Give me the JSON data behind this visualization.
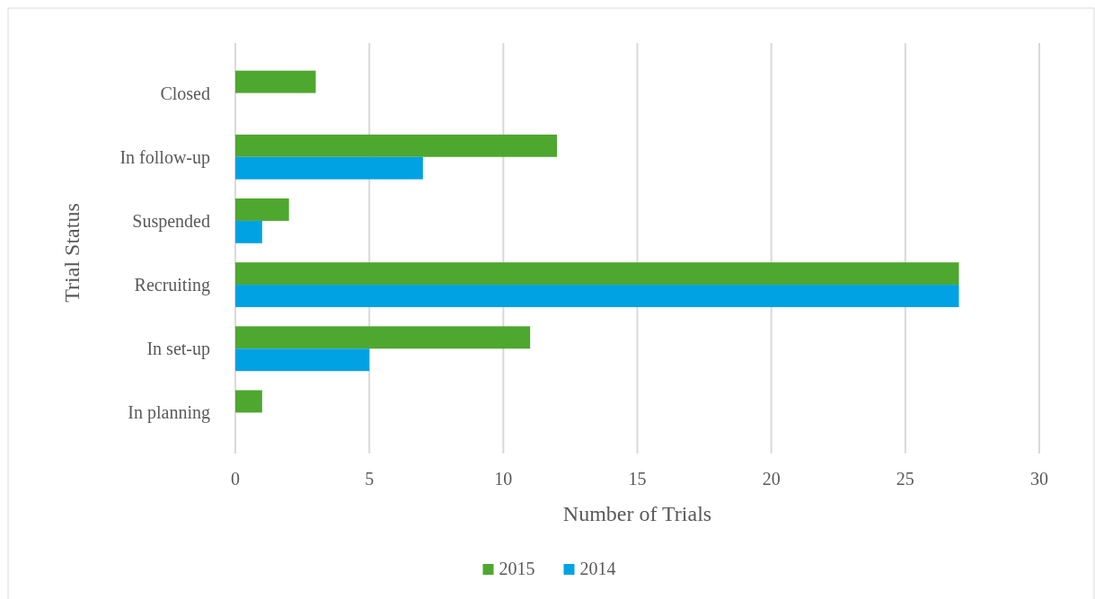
{
  "chart_data": {
    "type": "bar",
    "orientation": "horizontal",
    "xlabel": "Number of Trials",
    "ylabel": "Trial Status",
    "categories": [
      "Closed",
      "In follow-up",
      "Suspended",
      "Recruiting",
      "In set-up",
      "In planning"
    ],
    "series": [
      {
        "name": "2015",
        "color": "#4ea72e",
        "values": [
          3,
          12,
          2,
          27,
          11,
          1
        ]
      },
      {
        "name": "2014",
        "color": "#00a2e3",
        "values": [
          0,
          7,
          1,
          27,
          5,
          0
        ]
      }
    ],
    "xlim": [
      0,
      30
    ],
    "xticks": [
      0,
      5,
      10,
      15,
      20,
      25,
      30
    ],
    "grid": "x",
    "legend": "bottom"
  }
}
